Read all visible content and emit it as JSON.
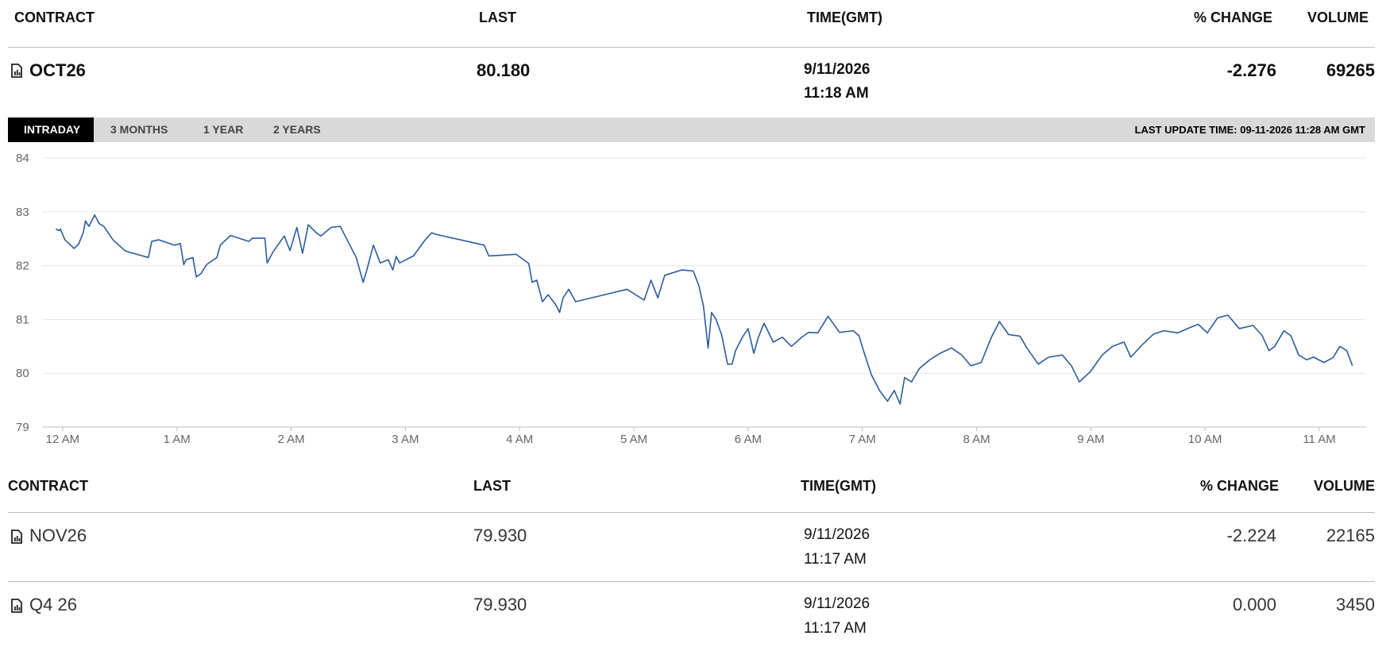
{
  "header": {
    "columns": [
      "CONTRACT",
      "LAST",
      "TIME(GMT)",
      "% CHANGE",
      "VOLUME"
    ]
  },
  "main_row": {
    "contract": "OCT26",
    "last": "80.180",
    "date": "9/11/2026",
    "time": "11:18 AM",
    "change": "-2.276",
    "volume": "69265"
  },
  "tabs": [
    "INTRADAY",
    "3 MONTHS",
    "1 YEAR",
    "2 YEARS"
  ],
  "last_update": "LAST UPDATE TIME: 09-11-2026 11:28 AM GMT",
  "chart_data": {
    "type": "line",
    "color": "#2b5c9b",
    "grid": true,
    "x": [
      -0.06,
      -0.03,
      -0.02,
      0.02,
      0.1,
      0.14,
      0.18,
      0.2,
      0.23,
      0.28,
      0.32,
      0.36,
      0.44,
      0.55,
      0.75,
      0.78,
      0.84,
      0.98,
      1.03,
      1.06,
      1.08,
      1.14,
      1.17,
      1.21,
      1.26,
      1.35,
      1.38,
      1.47,
      1.63,
      1.66,
      1.77,
      1.79,
      1.84,
      1.94,
      1.99,
      2.05,
      2.1,
      2.15,
      2.22,
      2.26,
      2.35,
      2.43,
      2.49,
      2.57,
      2.63,
      2.66,
      2.72,
      2.78,
      2.85,
      2.89,
      2.92,
      2.95,
      3.07,
      3.17,
      3.23,
      3.27,
      3.69,
      3.73,
      3.97,
      4.08,
      4.11,
      4.15,
      4.2,
      4.25,
      4.32,
      4.35,
      4.38,
      4.43,
      4.49,
      4.94,
      5.09,
      5.15,
      5.21,
      5.27,
      5.42,
      5.52,
      5.57,
      5.61,
      5.65,
      5.68,
      5.72,
      5.77,
      5.82,
      5.86,
      5.89,
      5.95,
      6.0,
      6.05,
      6.09,
      6.14,
      6.22,
      6.3,
      6.38,
      6.47,
      6.53,
      6.61,
      6.7,
      6.8,
      6.92,
      6.97,
      7.01,
      7.08,
      7.15,
      7.22,
      7.28,
      7.33,
      7.37,
      7.43,
      7.5,
      7.59,
      7.68,
      7.78,
      7.87,
      7.95,
      8.04,
      8.13,
      8.2,
      8.28,
      8.38,
      8.44,
      8.54,
      8.63,
      8.75,
      8.83,
      8.9,
      9.0,
      9.1,
      9.19,
      9.29,
      9.35,
      9.45,
      9.55,
      9.64,
      9.76,
      9.88,
      9.94,
      10.02,
      10.11,
      10.2,
      10.3,
      10.42,
      10.5,
      10.56,
      10.61,
      10.69,
      10.75,
      10.82,
      10.89,
      10.95,
      11.04,
      11.12,
      11.18,
      11.24,
      11.29
    ],
    "values": [
      82.68,
      82.65,
      82.68,
      82.48,
      82.32,
      82.4,
      82.61,
      82.83,
      82.73,
      82.94,
      82.78,
      82.73,
      82.48,
      82.27,
      82.15,
      82.45,
      82.48,
      82.38,
      82.41,
      82.02,
      82.11,
      82.15,
      81.79,
      81.85,
      82.02,
      82.15,
      82.38,
      82.56,
      82.45,
      82.51,
      82.51,
      82.05,
      82.25,
      82.55,
      82.28,
      82.71,
      82.23,
      82.76,
      82.61,
      82.55,
      82.71,
      82.73,
      82.48,
      82.15,
      81.69,
      81.9,
      82.38,
      82.05,
      82.11,
      81.92,
      82.17,
      82.05,
      82.18,
      82.47,
      82.61,
      82.58,
      82.38,
      82.18,
      82.21,
      82.04,
      81.69,
      81.73,
      81.33,
      81.46,
      81.26,
      81.13,
      81.4,
      81.56,
      81.33,
      81.56,
      81.36,
      81.73,
      81.4,
      81.82,
      81.92,
      81.9,
      81.62,
      81.24,
      80.47,
      81.13,
      81.0,
      80.7,
      80.17,
      80.17,
      80.42,
      80.67,
      80.83,
      80.37,
      80.67,
      80.93,
      80.58,
      80.67,
      80.5,
      80.67,
      80.76,
      80.75,
      81.06,
      80.76,
      80.79,
      80.7,
      80.42,
      79.97,
      79.68,
      79.48,
      79.68,
      79.43,
      79.92,
      79.84,
      80.09,
      80.25,
      80.37,
      80.47,
      80.34,
      80.14,
      80.2,
      80.67,
      80.96,
      80.72,
      80.69,
      80.47,
      80.17,
      80.3,
      80.34,
      80.14,
      79.84,
      80.04,
      80.34,
      80.5,
      80.58,
      80.3,
      80.53,
      80.73,
      80.79,
      80.75,
      80.86,
      80.91,
      80.75,
      81.03,
      81.08,
      80.83,
      80.89,
      80.7,
      80.42,
      80.5,
      80.79,
      80.7,
      80.34,
      80.25,
      80.3,
      80.2,
      80.29,
      80.5,
      80.42,
      80.14
    ],
    "xlim": [
      -0.18,
      11.41
    ],
    "ylim": [
      79,
      84
    ],
    "yticks": [
      79,
      80,
      81,
      82,
      83,
      84
    ],
    "xticks": [
      {
        "value": 0,
        "label": "12 AM"
      },
      {
        "value": 1,
        "label": "1 AM"
      },
      {
        "value": 2,
        "label": "2 AM"
      },
      {
        "value": 3,
        "label": "3 AM"
      },
      {
        "value": 4,
        "label": "4 AM"
      },
      {
        "value": 5,
        "label": "5 AM"
      },
      {
        "value": 6,
        "label": "6 AM"
      },
      {
        "value": 7,
        "label": "7 AM"
      },
      {
        "value": 8,
        "label": "8 AM"
      },
      {
        "value": 9,
        "label": "9 AM"
      },
      {
        "value": 10,
        "label": "10 AM"
      },
      {
        "value": 11,
        "label": "11 AM"
      }
    ]
  },
  "table": {
    "columns": [
      "CONTRACT",
      "LAST",
      "TIME(GMT)",
      "% CHANGE",
      "VOLUME"
    ],
    "rows": [
      [
        "NOV26",
        "79.930",
        "9/11/2026",
        "11:17 AM",
        "-2.224",
        "22165"
      ],
      [
        "Q4 26",
        "79.930",
        "9/11/2026",
        "11:17 AM",
        "0.000",
        "3450"
      ]
    ]
  }
}
